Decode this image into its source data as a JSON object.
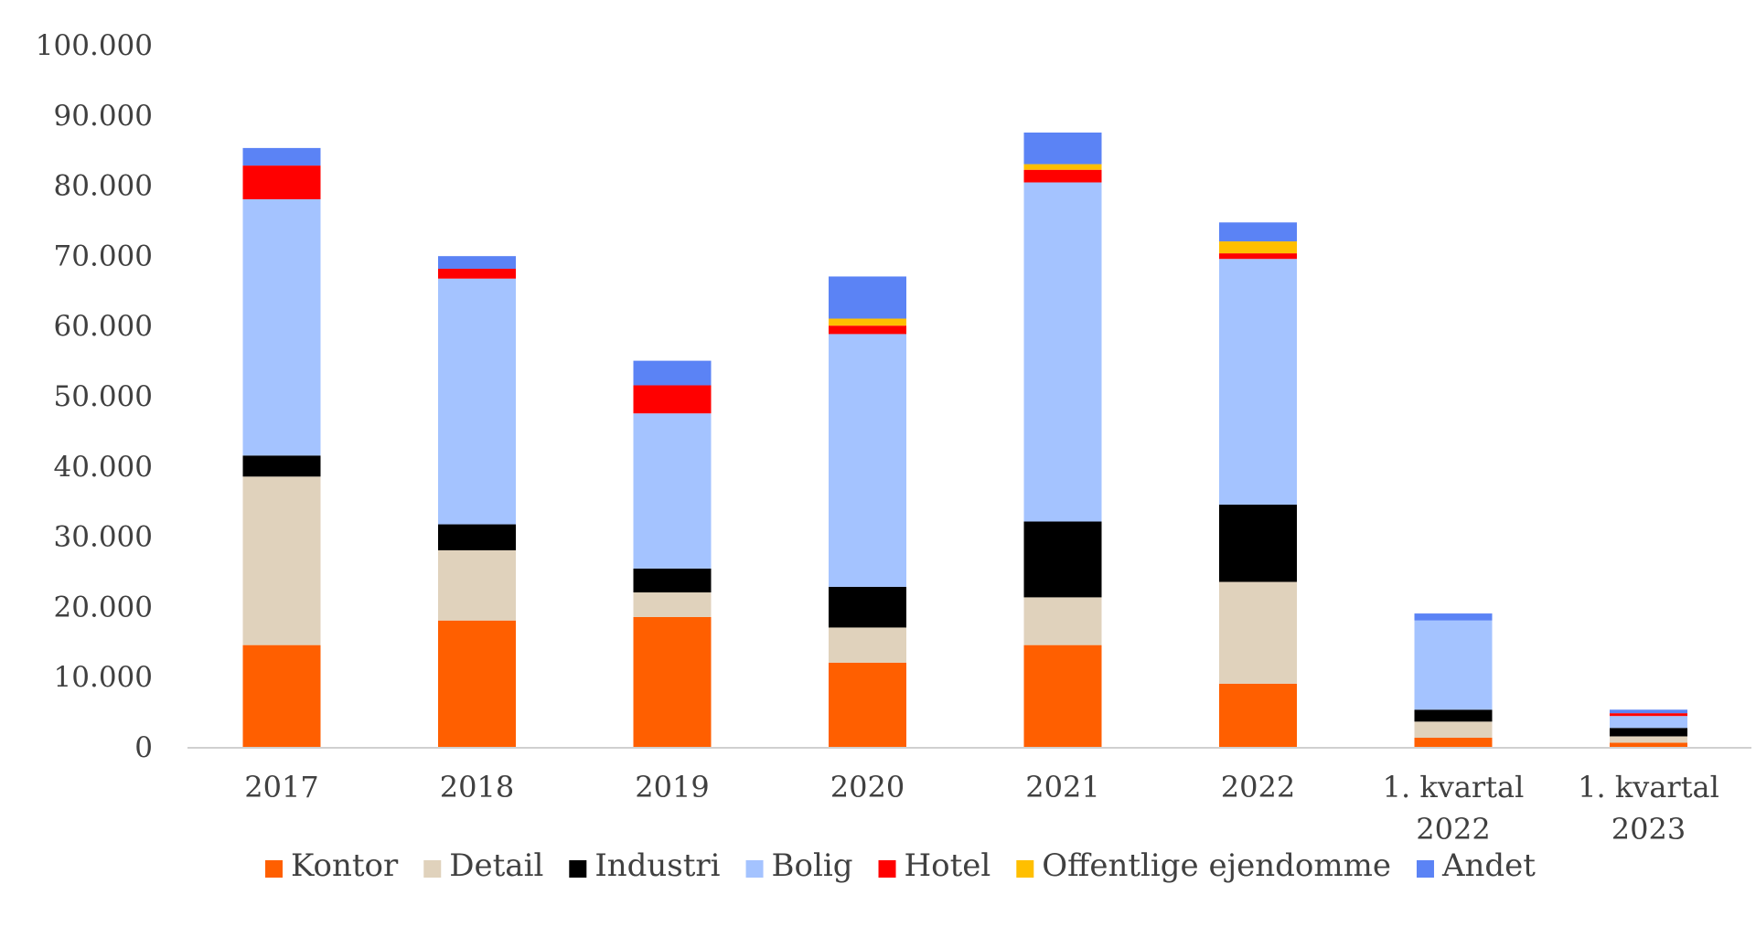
{
  "chart_data": {
    "type": "bar",
    "stacked": true,
    "categories": [
      "2017",
      "2018",
      "2019",
      "2020",
      "2021",
      "2022",
      "1. kvartal 2022",
      "1. kvartal 2023"
    ],
    "category_lines": [
      [
        "2017"
      ],
      [
        "2018"
      ],
      [
        "2019"
      ],
      [
        "2020"
      ],
      [
        "2021"
      ],
      [
        "2022"
      ],
      [
        "1. kvartal",
        "2022"
      ],
      [
        "1. kvartal",
        "2023"
      ]
    ],
    "ylim": [
      0,
      100000
    ],
    "yticks": [
      0,
      10000,
      20000,
      30000,
      40000,
      50000,
      60000,
      70000,
      80000,
      90000,
      100000
    ],
    "ytick_labels": [
      "0",
      "10.000",
      "20.000",
      "30.000",
      "40.000",
      "50.000",
      "60.000",
      "70.000",
      "80.000",
      "90.000",
      "100.000"
    ],
    "grid": false,
    "legend_position": "bottom",
    "series": [
      {
        "name": "Kontor",
        "color": "#FF5F00",
        "values": [
          14500,
          18000,
          18500,
          12000,
          14500,
          9000,
          1300,
          600
        ]
      },
      {
        "name": "Detail",
        "color": "#E0D2BC",
        "values": [
          24000,
          10000,
          3500,
          5000,
          6800,
          14500,
          2300,
          900
        ]
      },
      {
        "name": "Industri",
        "color": "#000000",
        "values": [
          3000,
          3700,
          3400,
          5800,
          10800,
          11000,
          1700,
          1200
        ]
      },
      {
        "name": "Bolig",
        "color": "#A4C3FF",
        "values": [
          36500,
          35000,
          22100,
          36000,
          48300,
          35000,
          12700,
          1700
        ]
      },
      {
        "name": "Hotel",
        "color": "#FF0000",
        "values": [
          4800,
          1400,
          4000,
          1200,
          1800,
          800,
          0,
          400
        ]
      },
      {
        "name": "Offentlige ejendomme",
        "color": "#FFBF00",
        "values": [
          0,
          0,
          0,
          1000,
          800,
          1700,
          0,
          0
        ]
      },
      {
        "name": "Andet",
        "color": "#5B83F5",
        "values": [
          2500,
          1800,
          3500,
          6000,
          4500,
          2700,
          1000,
          500
        ]
      }
    ]
  }
}
